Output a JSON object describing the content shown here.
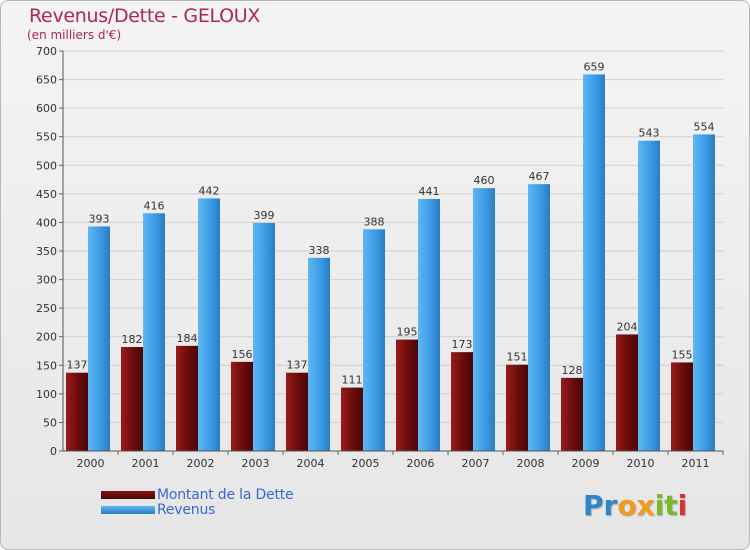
{
  "chart_data": {
    "type": "bar",
    "title": "Revenus/Dette - GELOUX",
    "subtitle": "(en milliers d'€)",
    "categories": [
      "2000",
      "2001",
      "2002",
      "2003",
      "2004",
      "2005",
      "2006",
      "2007",
      "2008",
      "2009",
      "2010",
      "2011"
    ],
    "series": [
      {
        "name": "Montant de la Dette",
        "color": "#7a1010",
        "values": [
          137,
          182,
          184,
          156,
          137,
          111,
          195,
          173,
          151,
          128,
          204,
          155
        ]
      },
      {
        "name": "Revenus",
        "color": "#3d9ee8",
        "values": [
          393,
          416,
          442,
          399,
          338,
          388,
          441,
          460,
          467,
          659,
          543,
          554
        ]
      }
    ],
    "ylim": [
      0,
      700
    ],
    "yticks": [
      0,
      50,
      100,
      150,
      200,
      250,
      300,
      350,
      400,
      450,
      500,
      550,
      600,
      650,
      700
    ],
    "grid": true,
    "legend": "bottom-left"
  },
  "logo": {
    "text": "Proxiti",
    "letters": [
      "P",
      "r",
      "o",
      "x",
      "i",
      "t",
      "i"
    ],
    "colors": [
      "#2c86c8",
      "#2c86c8",
      "#f39a1e",
      "#f39a1e",
      "#7ab928",
      "#7ab928",
      "#d9342b"
    ]
  }
}
